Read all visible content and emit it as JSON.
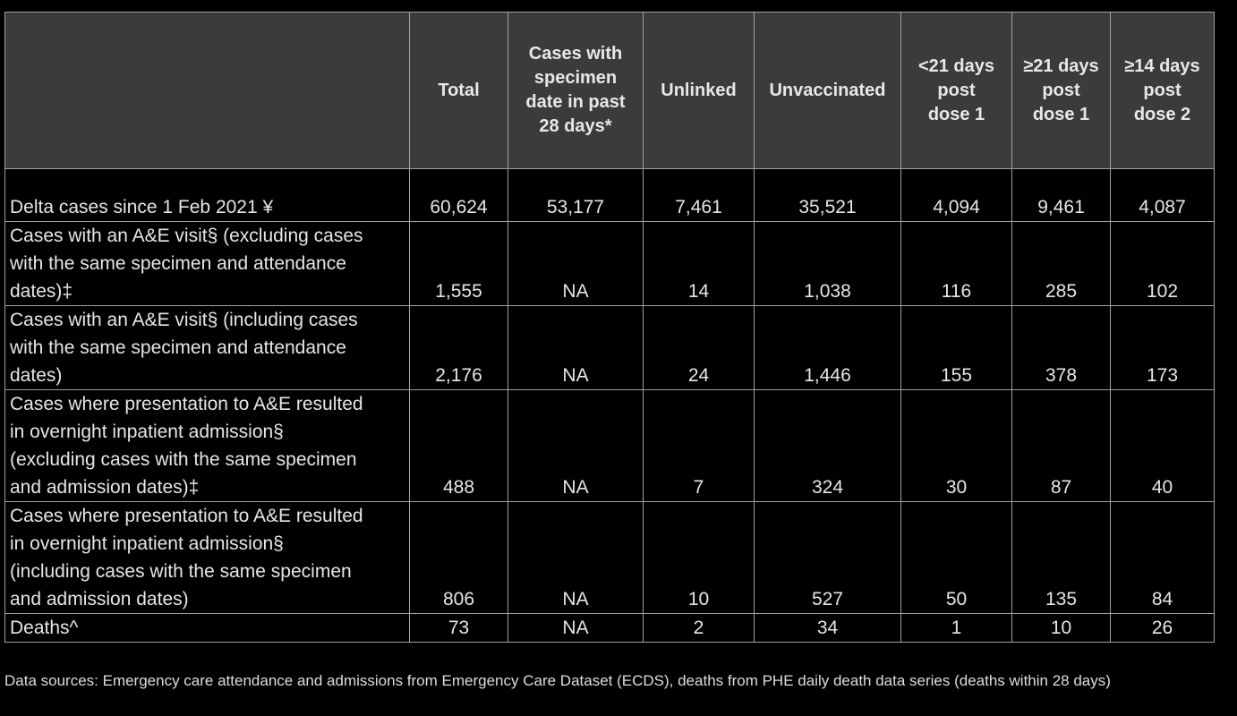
{
  "table": {
    "columns": [
      [
        "Total"
      ],
      [
        "Cases with",
        "specimen",
        "date in past",
        "28 days*"
      ],
      [
        "Unlinked"
      ],
      [
        "Unvaccinated"
      ],
      [
        "<21 days",
        "post",
        "dose 1"
      ],
      [
        "≥21 days",
        "post",
        "dose 1"
      ],
      [
        "≥14 days",
        "post",
        "dose 2"
      ]
    ],
    "rows": [
      {
        "label": [
          "Delta cases since 1 Feb 2021 ¥"
        ],
        "values": [
          "60,624",
          "53,177",
          "7,461",
          "35,521",
          "4,094",
          "9,461",
          "4,087"
        ]
      },
      {
        "label": [
          "Cases with an A&E visit§ (excluding cases",
          "with the same specimen and attendance",
          "dates)‡"
        ],
        "values": [
          "1,555",
          "NA",
          "14",
          "1,038",
          "116",
          "285",
          "102"
        ]
      },
      {
        "label": [
          "Cases with an A&E visit§ (including cases",
          "with the same specimen and attendance",
          "dates)"
        ],
        "values": [
          "2,176",
          "NA",
          "24",
          "1,446",
          "155",
          "378",
          "173"
        ]
      },
      {
        "label": [
          "Cases where presentation to A&E resulted",
          "in overnight inpatient admission§",
          "(excluding cases with the same specimen",
          "and admission dates)‡"
        ],
        "values": [
          "488",
          "NA",
          "7",
          "324",
          "30",
          "87",
          "40"
        ]
      },
      {
        "label": [
          "Cases where presentation to A&E resulted",
          "in overnight inpatient admission§",
          "(including cases with the same specimen",
          "and admission dates)"
        ],
        "values": [
          "806",
          "NA",
          "10",
          "527",
          "50",
          "135",
          "84"
        ]
      },
      {
        "label": [
          "Deaths^"
        ],
        "values": [
          "73",
          "NA",
          "2",
          "34",
          "1",
          "10",
          "26"
        ]
      }
    ]
  },
  "footnote": "Data sources: Emergency care attendance and admissions from Emergency Care Dataset (ECDS), deaths from PHE daily death data series (deaths within 28 days)"
}
